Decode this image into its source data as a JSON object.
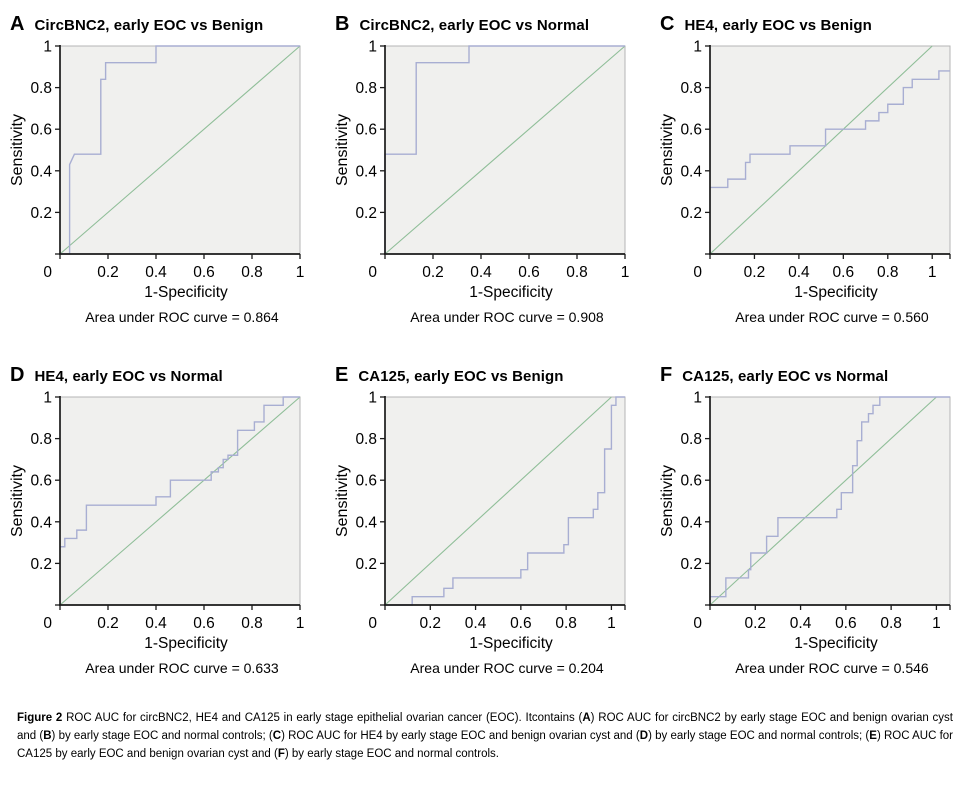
{
  "colors": {
    "roc_curve": "#a8aed2",
    "reference_line": "#8fbe98",
    "plot_background": "#f0f0ee",
    "plot_frame": "#b5b5b5",
    "axis": "#1a1a1a",
    "text": "#000000"
  },
  "axis_labels": {
    "x": "1-Specificity",
    "y": "Sensitivity"
  },
  "chart_data": [
    {
      "panel": "A",
      "type": "line",
      "title": "CircBNC2, early EOC vs Benign",
      "xlabel": "1-Specificity",
      "ylabel": "Sensitivity",
      "auc": 0.864,
      "auc_label": "Area under ROC curve = 0.864",
      "xlim": [
        0,
        1
      ],
      "ylim": [
        0,
        1
      ],
      "xticks": [
        0,
        0.2,
        0.4,
        0.6,
        0.8,
        1
      ],
      "yticks": [
        0,
        0.2,
        0.4,
        0.6,
        0.8,
        1
      ],
      "grid": false,
      "legend": "none",
      "series": [
        {
          "name": "ROC curve",
          "role": "roc",
          "points": [
            [
              0,
              0
            ],
            [
              0.04,
              0
            ],
            [
              0.04,
              0.43
            ],
            [
              0.06,
              0.48
            ],
            [
              0.17,
              0.48
            ],
            [
              0.17,
              0.84
            ],
            [
              0.19,
              0.84
            ],
            [
              0.19,
              0.92
            ],
            [
              0.4,
              0.92
            ],
            [
              0.4,
              1
            ],
            [
              1,
              1
            ]
          ]
        },
        {
          "name": "Reference diagonal",
          "role": "reference",
          "points": [
            [
              0,
              0
            ],
            [
              1,
              1
            ]
          ]
        }
      ]
    },
    {
      "panel": "B",
      "type": "line",
      "title": "CircBNC2, early EOC vs Normal",
      "xlabel": "1-Specificity",
      "ylabel": "Sensitivity",
      "auc": 0.908,
      "auc_label": "Area under ROC curve = 0.908",
      "xlim": [
        0,
        1
      ],
      "ylim": [
        0,
        1
      ],
      "xticks": [
        0,
        0.2,
        0.4,
        0.6,
        0.8,
        1
      ],
      "yticks": [
        0,
        0.2,
        0.4,
        0.6,
        0.8,
        1
      ],
      "grid": false,
      "legend": "none",
      "series": [
        {
          "name": "ROC curve",
          "role": "roc",
          "points": [
            [
              0,
              0
            ],
            [
              0,
              0.48
            ],
            [
              0.13,
              0.48
            ],
            [
              0.13,
              0.92
            ],
            [
              0.35,
              0.92
            ],
            [
              0.35,
              1
            ],
            [
              1,
              1
            ]
          ]
        },
        {
          "name": "Reference diagonal",
          "role": "reference",
          "points": [
            [
              0,
              0
            ],
            [
              1,
              1
            ]
          ]
        }
      ]
    },
    {
      "panel": "C",
      "type": "line",
      "title": "HE4, early EOC vs Benign",
      "xlabel": "1-Specificity",
      "ylabel": "Sensitivity",
      "auc": 0.56,
      "auc_label": "Area under ROC curve = 0.560",
      "xlim": [
        0,
        1.08
      ],
      "ylim": [
        0,
        1
      ],
      "xticks": [
        0,
        0.2,
        0.4,
        0.6,
        0.8,
        1
      ],
      "yticks": [
        0,
        0.2,
        0.4,
        0.6,
        0.8,
        1
      ],
      "grid": false,
      "legend": "none",
      "series": [
        {
          "name": "ROC curve",
          "role": "roc",
          "points": [
            [
              0,
              0.32
            ],
            [
              0.08,
              0.32
            ],
            [
              0.08,
              0.36
            ],
            [
              0.16,
              0.36
            ],
            [
              0.16,
              0.44
            ],
            [
              0.18,
              0.44
            ],
            [
              0.18,
              0.48
            ],
            [
              0.36,
              0.48
            ],
            [
              0.36,
              0.52
            ],
            [
              0.52,
              0.52
            ],
            [
              0.52,
              0.6
            ],
            [
              0.7,
              0.6
            ],
            [
              0.7,
              0.64
            ],
            [
              0.76,
              0.64
            ],
            [
              0.76,
              0.68
            ],
            [
              0.8,
              0.68
            ],
            [
              0.8,
              0.72
            ],
            [
              0.87,
              0.72
            ],
            [
              0.87,
              0.8
            ],
            [
              0.91,
              0.8
            ],
            [
              0.91,
              0.84
            ],
            [
              1.03,
              0.84
            ],
            [
              1.03,
              0.88
            ],
            [
              1.08,
              0.88
            ]
          ]
        },
        {
          "name": "Reference diagonal",
          "role": "reference",
          "points": [
            [
              0,
              0
            ],
            [
              1,
              1
            ]
          ]
        }
      ]
    },
    {
      "panel": "D",
      "type": "line",
      "title": "HE4, early EOC vs Normal",
      "xlabel": "1-Specificity",
      "ylabel": "Sensitivity",
      "auc": 0.633,
      "auc_label": "Area under ROC curve = 0.633",
      "xlim": [
        0,
        1
      ],
      "ylim": [
        0,
        1
      ],
      "xticks": [
        0,
        0.2,
        0.4,
        0.6,
        0.8,
        1
      ],
      "yticks": [
        0,
        0.2,
        0.4,
        0.6,
        0.8,
        1
      ],
      "grid": false,
      "legend": "none",
      "series": [
        {
          "name": "ROC curve",
          "role": "roc",
          "points": [
            [
              0,
              0.28
            ],
            [
              0.02,
              0.28
            ],
            [
              0.02,
              0.32
            ],
            [
              0.07,
              0.32
            ],
            [
              0.07,
              0.36
            ],
            [
              0.11,
              0.36
            ],
            [
              0.11,
              0.48
            ],
            [
              0.4,
              0.48
            ],
            [
              0.4,
              0.52
            ],
            [
              0.46,
              0.52
            ],
            [
              0.46,
              0.6
            ],
            [
              0.63,
              0.6
            ],
            [
              0.63,
              0.64
            ],
            [
              0.66,
              0.64
            ],
            [
              0.66,
              0.66
            ],
            [
              0.68,
              0.66
            ],
            [
              0.68,
              0.7
            ],
            [
              0.7,
              0.7
            ],
            [
              0.7,
              0.72
            ],
            [
              0.74,
              0.72
            ],
            [
              0.74,
              0.84
            ],
            [
              0.81,
              0.84
            ],
            [
              0.81,
              0.88
            ],
            [
              0.85,
              0.88
            ],
            [
              0.85,
              0.96
            ],
            [
              0.93,
              0.96
            ],
            [
              0.93,
              1
            ],
            [
              1,
              1
            ]
          ]
        },
        {
          "name": "Reference diagonal",
          "role": "reference",
          "points": [
            [
              0,
              0
            ],
            [
              1,
              1
            ]
          ]
        }
      ]
    },
    {
      "panel": "E",
      "type": "line",
      "title": "CA125, early EOC vs Benign",
      "xlabel": "1-Specificity",
      "ylabel": "Sensitivity",
      "auc": 0.204,
      "auc_label": "Area under ROC curve = 0.204",
      "xlim": [
        0,
        1.06
      ],
      "ylim": [
        0,
        1
      ],
      "xticks": [
        0,
        0.2,
        0.4,
        0.6,
        0.8,
        1
      ],
      "yticks": [
        0,
        0.2,
        0.4,
        0.6,
        0.8,
        1
      ],
      "grid": false,
      "legend": "none",
      "series": [
        {
          "name": "ROC curve",
          "role": "roc",
          "points": [
            [
              0,
              0
            ],
            [
              0.12,
              0
            ],
            [
              0.12,
              0.04
            ],
            [
              0.26,
              0.04
            ],
            [
              0.26,
              0.08
            ],
            [
              0.3,
              0.08
            ],
            [
              0.3,
              0.13
            ],
            [
              0.6,
              0.13
            ],
            [
              0.6,
              0.17
            ],
            [
              0.63,
              0.17
            ],
            [
              0.63,
              0.25
            ],
            [
              0.79,
              0.25
            ],
            [
              0.79,
              0.29
            ],
            [
              0.81,
              0.29
            ],
            [
              0.81,
              0.42
            ],
            [
              0.92,
              0.42
            ],
            [
              0.92,
              0.46
            ],
            [
              0.94,
              0.46
            ],
            [
              0.94,
              0.54
            ],
            [
              0.97,
              0.54
            ],
            [
              0.97,
              0.75
            ],
            [
              1,
              0.75
            ],
            [
              1,
              0.96
            ],
            [
              1.02,
              0.96
            ],
            [
              1.02,
              1
            ],
            [
              1.06,
              1
            ]
          ]
        },
        {
          "name": "Reference diagonal",
          "role": "reference",
          "points": [
            [
              0,
              0
            ],
            [
              1,
              1
            ]
          ]
        }
      ]
    },
    {
      "panel": "F",
      "type": "line",
      "title": "CA125, early EOC vs Normal",
      "xlabel": "1-Specificity",
      "ylabel": "Sensitivity",
      "auc": 0.546,
      "auc_label": "Area under ROC curve = 0.546",
      "xlim": [
        0,
        1.06
      ],
      "ylim": [
        0,
        1
      ],
      "xticks": [
        0,
        0.2,
        0.4,
        0.6,
        0.8,
        1
      ],
      "yticks": [
        0,
        0.2,
        0.4,
        0.6,
        0.8,
        1
      ],
      "grid": false,
      "legend": "none",
      "series": [
        {
          "name": "ROC curve",
          "role": "roc",
          "points": [
            [
              0,
              0.04
            ],
            [
              0.07,
              0.04
            ],
            [
              0.07,
              0.13
            ],
            [
              0.17,
              0.13
            ],
            [
              0.17,
              0.17
            ],
            [
              0.18,
              0.17
            ],
            [
              0.18,
              0.25
            ],
            [
              0.25,
              0.25
            ],
            [
              0.25,
              0.33
            ],
            [
              0.3,
              0.33
            ],
            [
              0.3,
              0.42
            ],
            [
              0.56,
              0.42
            ],
            [
              0.56,
              0.46
            ],
            [
              0.58,
              0.46
            ],
            [
              0.58,
              0.54
            ],
            [
              0.63,
              0.54
            ],
            [
              0.63,
              0.67
            ],
            [
              0.65,
              0.67
            ],
            [
              0.65,
              0.79
            ],
            [
              0.67,
              0.79
            ],
            [
              0.67,
              0.88
            ],
            [
              0.7,
              0.88
            ],
            [
              0.7,
              0.92
            ],
            [
              0.72,
              0.92
            ],
            [
              0.72,
              0.96
            ],
            [
              0.75,
              0.96
            ],
            [
              0.75,
              1
            ],
            [
              1.06,
              1
            ]
          ]
        },
        {
          "name": "Reference diagonal",
          "role": "reference",
          "points": [
            [
              0,
              0
            ],
            [
              1,
              1
            ]
          ]
        }
      ]
    }
  ],
  "figure_caption": {
    "segments": [
      {
        "text": "Figure 2",
        "bold": true
      },
      {
        "text": " ROC AUC for circBNC2, HE4 and CA125 in early stage epithelial ovarian cancer (EOC). Itcontains (",
        "bold": false
      },
      {
        "text": "A",
        "bold": true
      },
      {
        "text": ") ROC AUC for circBNC2 by early stage EOC and benign ovarian cyst and (",
        "bold": false
      },
      {
        "text": "B",
        "bold": true
      },
      {
        "text": ") by early stage EOC and normal controls; (",
        "bold": false
      },
      {
        "text": "C",
        "bold": true
      },
      {
        "text": ") ROC AUC for HE4 by early stage EOC and benign ovarian cyst and (",
        "bold": false
      },
      {
        "text": "D",
        "bold": true
      },
      {
        "text": ") by early stage EOC and normal controls; (",
        "bold": false
      },
      {
        "text": "E",
        "bold": true
      },
      {
        "text": ") ROC AUC for CA125 by early EOC and benign ovarian cyst and (",
        "bold": false
      },
      {
        "text": "F",
        "bold": true
      },
      {
        "text": ") by early stage EOC and normal controls.",
        "bold": false
      }
    ]
  }
}
